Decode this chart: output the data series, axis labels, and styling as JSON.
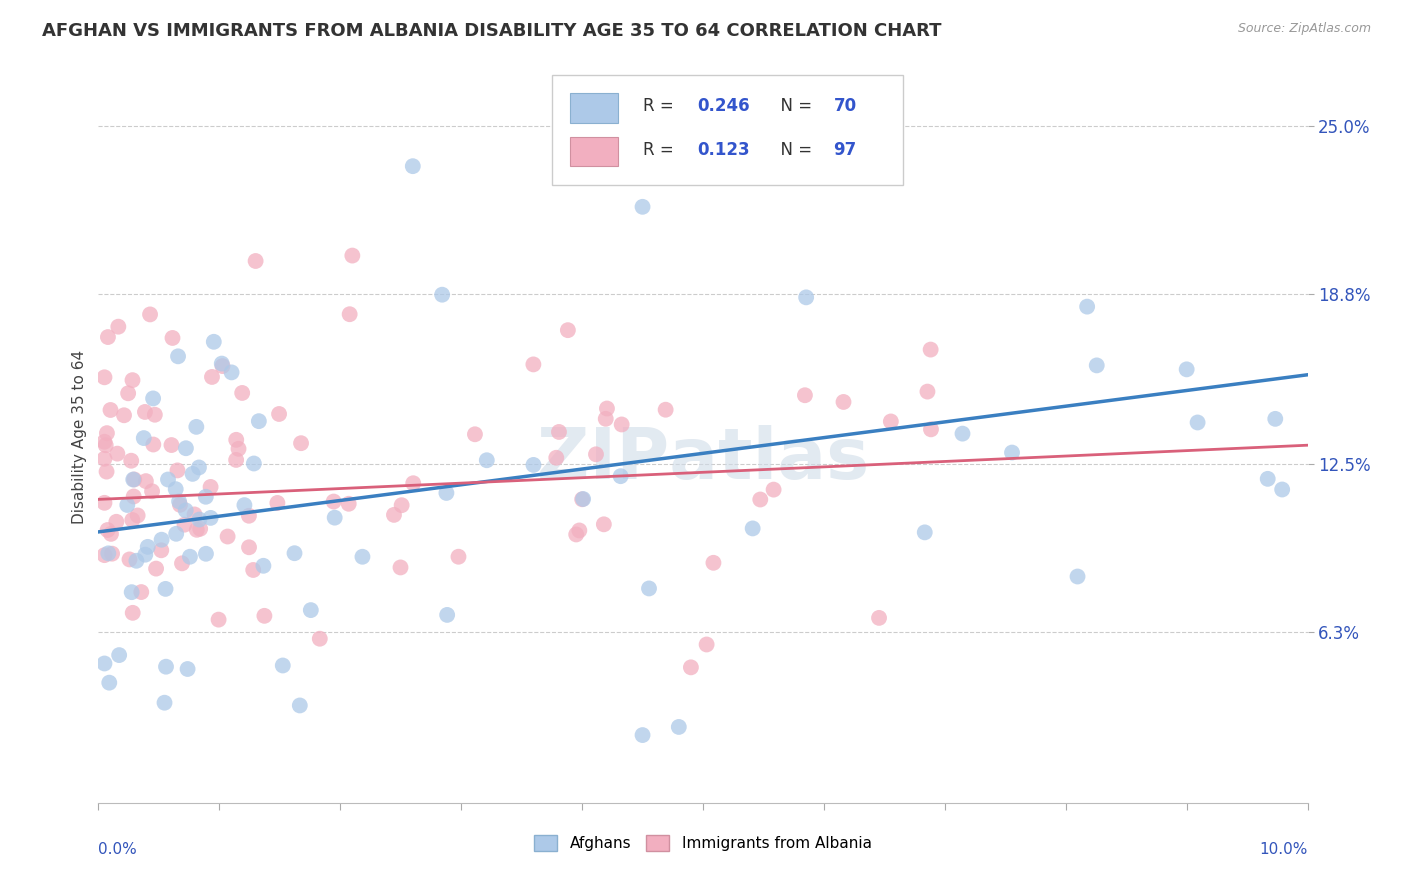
{
  "title": "AFGHAN VS IMMIGRANTS FROM ALBANIA DISABILITY AGE 35 TO 64 CORRELATION CHART",
  "source": "Source: ZipAtlas.com",
  "ylabel": "Disability Age 35 to 64",
  "y_ticks": [
    6.3,
    12.5,
    18.8,
    25.0
  ],
  "xlim": [
    0.0,
    10.0
  ],
  "ylim": [
    0.0,
    27.0
  ],
  "color_afghan": "#adc9e8",
  "color_albania": "#f2afc0",
  "color_line_afghan": "#3a7fc1",
  "color_line_albania": "#d9607a",
  "watermark": "ZIPAtlas"
}
